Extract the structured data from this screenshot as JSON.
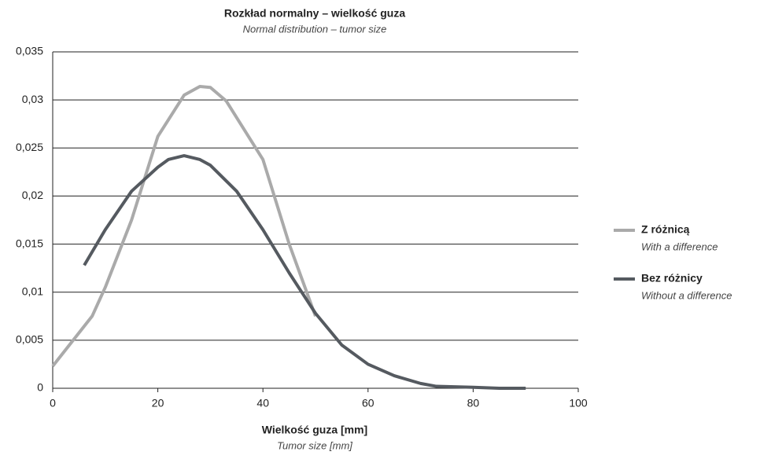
{
  "chart_data": {
    "type": "line",
    "title": "Rozkład normalny – wielkość guza",
    "subtitle": "Normal distribution – tumor size",
    "x_label": "Wielkość guza [mm]",
    "x_label_translation": "Tumor size [mm]",
    "xlim": [
      0,
      100
    ],
    "xticks": [
      0,
      20,
      40,
      60,
      80,
      100
    ],
    "ylim": [
      0,
      0.035
    ],
    "yticks": [
      0,
      {
        "value": 0.005,
        "label": "0,005"
      },
      {
        "value": 0.01,
        "label": "0,01"
      },
      {
        "value": 0.015,
        "label": "0,015"
      },
      {
        "value": 0.02,
        "label": "0,02"
      },
      {
        "value": 0.025,
        "label": "0,025"
      },
      {
        "value": 0.03,
        "label": "0,03"
      },
      {
        "value": 0.035,
        "label": "0,035"
      }
    ],
    "grid": true,
    "legend": "right",
    "series": [
      {
        "name": "Z różnicą",
        "name_translation": "With a difference",
        "color": "#aaaaaa",
        "x": [
          0,
          7.5,
          10,
          15,
          20,
          25,
          28,
          30,
          33,
          40,
          45,
          50
        ],
        "values": [
          0.0023,
          0.0075,
          0.0105,
          0.0175,
          0.0262,
          0.0305,
          0.0314,
          0.0313,
          0.0299,
          0.0238,
          0.015,
          0.0075
        ]
      },
      {
        "name": "Bez różnicy",
        "name_translation": "Without a difference",
        "color": "#555a60",
        "x": [
          6,
          10,
          15,
          20,
          22,
          25,
          28,
          30,
          35,
          40,
          45,
          50,
          55,
          60,
          65,
          70,
          73,
          80,
          85,
          90
        ],
        "values": [
          0.0128,
          0.0165,
          0.0205,
          0.023,
          0.0238,
          0.0242,
          0.0238,
          0.0232,
          0.0205,
          0.0165,
          0.012,
          0.0078,
          0.0045,
          0.0025,
          0.0013,
          0.0005,
          0.0002,
          0.0001,
          0,
          0
        ]
      }
    ]
  }
}
